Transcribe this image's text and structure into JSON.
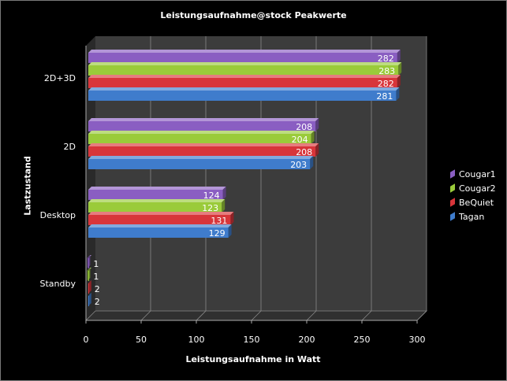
{
  "chart_data": {
    "type": "bar",
    "orientation": "horizontal",
    "title": "Leistungsaufnahme@stock  Peakwerte",
    "xlabel": "Leistungsaufnahme in Watt",
    "ylabel": "Lastzustand",
    "categories": [
      "2D+3D",
      "2D",
      "Desktop",
      "Standby"
    ],
    "series": [
      {
        "name": "Cougar1",
        "color": "#8a5ec2",
        "values": [
          282,
          208,
          124,
          1
        ]
      },
      {
        "name": "Cougar2",
        "color": "#9acb3a",
        "values": [
          283,
          204,
          123,
          1
        ]
      },
      {
        "name": "BeQuiet",
        "color": "#d8353a",
        "values": [
          282,
          208,
          131,
          2
        ]
      },
      {
        "name": "Tagan",
        "color": "#3f7ccc",
        "values": [
          281,
          203,
          129,
          2
        ]
      }
    ],
    "xlim": [
      0,
      300
    ],
    "xticks": [
      0,
      50,
      100,
      150,
      200,
      250,
      300
    ],
    "grid": true,
    "legend_position": "right",
    "data_labels": true
  }
}
